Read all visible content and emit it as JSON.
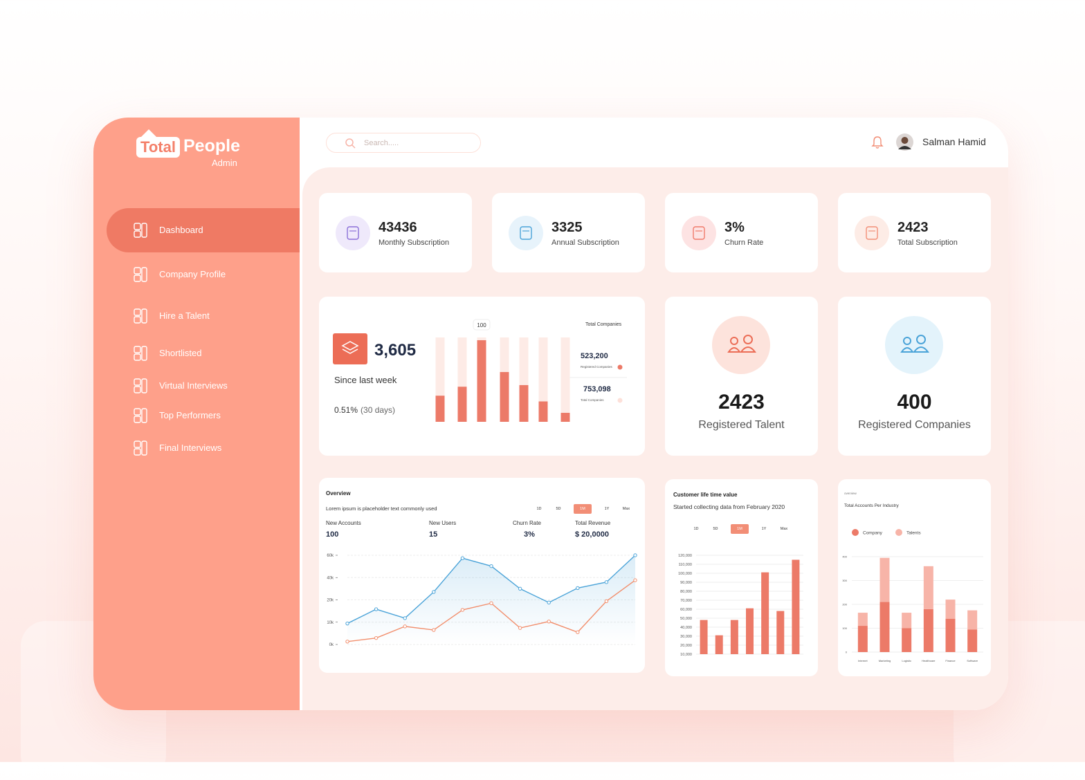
{
  "brand": {
    "logo_box": "Total",
    "logo_text": "People",
    "role": "Admin"
  },
  "nav": {
    "items": [
      "Dashboard",
      "Company Profile",
      "Hire a Talent",
      "Shortlisted",
      "Virtual Interviews",
      "Top Performers",
      "Final Interviews"
    ],
    "active": 0
  },
  "search": {
    "placeholder": "Search....."
  },
  "user": {
    "name": "Salman Hamid"
  },
  "stats": [
    {
      "value": "43436",
      "label": "Monthly Subscription"
    },
    {
      "value": "3325",
      "label": "Annual Subscription"
    },
    {
      "value": "3%",
      "label": "Churn Rate"
    },
    {
      "value": "2423",
      "label": "Total Subscription"
    }
  ],
  "weekly": {
    "value": "3,605",
    "caption": "Since last week",
    "change": "0.51%",
    "period": "(30 days)",
    "chart": {
      "type": "bar",
      "values": [
        32,
        43,
        100,
        61,
        45,
        25,
        11
      ],
      "color": "#ec7a68",
      "track_color": "#fdebe6"
    },
    "legend_title": "Total Companies",
    "legend": [
      {
        "value": "523,200",
        "label": "Registered Companies",
        "color": "#ec7a68"
      },
      {
        "value": "753,098",
        "label": "Total Companies",
        "color": "#fde0d9"
      }
    ]
  },
  "talent": {
    "value": "2423",
    "label": "Registered Talent"
  },
  "companies": {
    "value": "400",
    "label": "Registered Companies"
  },
  "overview": {
    "title": "Overview",
    "subtitle": "Lorem ipsum is placeholder text commonly used",
    "ranges": [
      "1D",
      "5D",
      "1M",
      "1Y",
      "Max"
    ],
    "active_range": 2,
    "metrics": [
      {
        "label": "New Accounts",
        "value": "100"
      },
      {
        "label": "New Users",
        "value": "15"
      },
      {
        "label": "Churn Rate",
        "value": "3%"
      },
      {
        "label": "Total Revenue",
        "value": "$ 20,0000"
      }
    ],
    "chart": {
      "type": "line",
      "categories": [
        null,
        null,
        null,
        null,
        null,
        null,
        null,
        null,
        null,
        null,
        null
      ],
      "series": [
        {
          "color": "#4aa3d8",
          "values": [
            9400,
            15800,
            11800,
            27100,
            57400,
            50300,
            30000,
            18800,
            30600,
            35900,
            60000
          ]
        },
        {
          "color": "#f28e6c",
          "values": [
            1300,
            2900,
            8100,
            6500,
            15500,
            18500,
            7400,
            10300,
            5500,
            19400,
            37600
          ]
        }
      ],
      "yticks": [
        {
          "value": 0,
          "label": "0k"
        },
        {
          "value": 10000,
          "label": "10k"
        },
        {
          "value": 20000,
          "label": "20k"
        },
        {
          "value": 40000,
          "label": "40k"
        },
        {
          "value": 60000,
          "label": "60k"
        }
      ],
      "grid": true,
      "area": true
    }
  },
  "lifetime": {
    "title": "Customer life time value",
    "subtitle": "Started collecting data from February 2020",
    "ranges": [
      "1D",
      "5D",
      "1M",
      "1Y",
      "Max"
    ],
    "active_range": 2,
    "chart": {
      "type": "bar",
      "categories": [
        null,
        null,
        null,
        null,
        null,
        null,
        null
      ],
      "values": [
        48000,
        31000,
        48000,
        61000,
        101000,
        58000,
        115000
      ],
      "color": "#ec7a68",
      "ylim": [
        10000,
        120000
      ],
      "yticks": [
        {
          "value": 10000,
          "label": "10,000"
        },
        {
          "value": 20000,
          "label": "20,000"
        },
        {
          "value": 30000,
          "label": "30,000"
        },
        {
          "value": 40000,
          "label": "40,000"
        },
        {
          "value": 50000,
          "label": "50,000"
        },
        {
          "value": 60000,
          "label": "60,000"
        },
        {
          "value": 70000,
          "label": "70,000"
        },
        {
          "value": 80000,
          "label": "80,000"
        },
        {
          "value": 90000,
          "label": "90,000"
        },
        {
          "value": 100000,
          "label": "100,000"
        },
        {
          "value": 110000,
          "label": "110,000"
        },
        {
          "value": 120000,
          "label": "120,000"
        }
      ],
      "grid": true
    }
  },
  "industry": {
    "eyebrow": "overview",
    "title": "Total Accounts Per Industry",
    "chart": {
      "type": "stacked_bar",
      "categories": [
        "Internet",
        "Marketing",
        "Logistic",
        "Healthcare",
        "Finance",
        "Software"
      ],
      "series": [
        {
          "name": "Company",
          "color": "#ec7a68",
          "values": [
            110,
            210,
            100,
            180,
            140,
            95
          ]
        },
        {
          "name": "Talents",
          "color": "#f7b4a8",
          "values": [
            55,
            185,
            65,
            180,
            80,
            80
          ]
        }
      ],
      "ylim": [
        0,
        400
      ],
      "yticks": [
        0,
        100,
        200,
        300,
        400
      ],
      "grid": true
    }
  }
}
